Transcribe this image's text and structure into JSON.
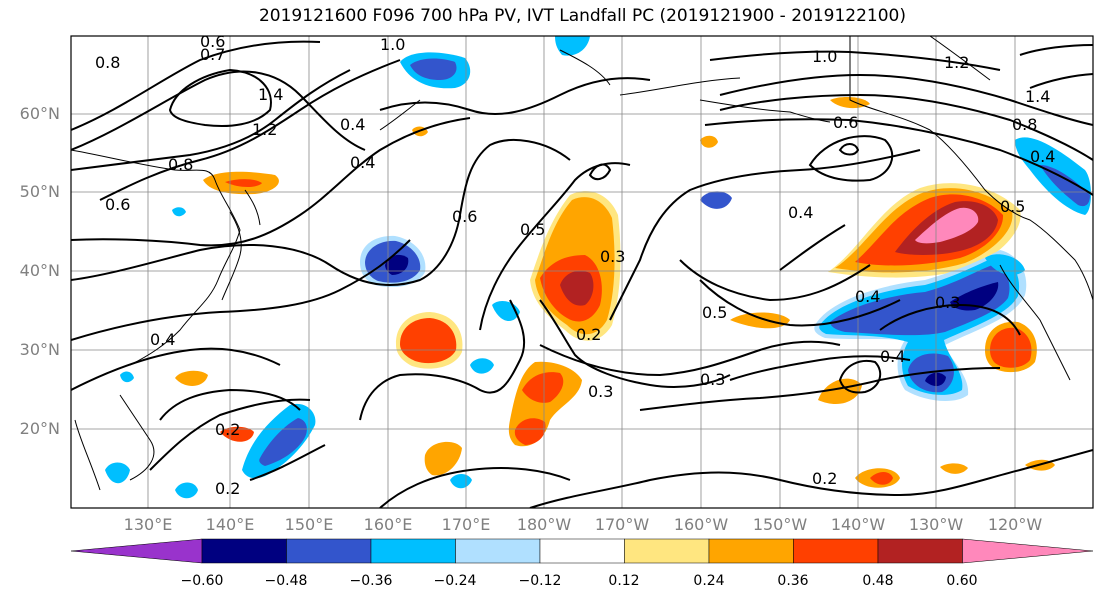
{
  "title": "2019121600 F096 700 hPa PV, IVT Landfall PC (2019121900 - 2019122100)",
  "lat_labels": [
    "60°N",
    "50°N",
    "40°N",
    "30°N",
    "20°N"
  ],
  "lon_labels": [
    "130°E",
    "140°E",
    "150°E",
    "160°E",
    "170°E",
    "180°W",
    "170°W",
    "160°W",
    "150°W",
    "140°W",
    "130°W",
    "120°W"
  ],
  "contour_labels": [
    "0.8",
    "0.6",
    "0.7",
    "1.0",
    "1.4",
    "1.2",
    "0.8",
    "0.6",
    "0.4",
    "0.4",
    "0.6",
    "0.5",
    "0.3",
    "0.2",
    "0.3",
    "0.2",
    "0.2",
    "0.4",
    "0.5",
    "0.3",
    "0.4",
    "0.4",
    "0.3",
    "0.4",
    "0.2",
    "1.0",
    "1.2",
    "1.4",
    "0.8",
    "0.4",
    "0.5",
    "0.6"
  ],
  "colorbar": {
    "colors": [
      "#9933cc",
      "#000080",
      "#3355cc",
      "#00bfff",
      "#b0e0ff",
      "#ffffff",
      "#ffe680",
      "#ffa500",
      "#ff4000",
      "#b22222",
      "#ff88bb"
    ],
    "tick_labels": [
      "−0.60",
      "−0.48",
      "−0.36",
      "−0.24",
      "−0.12",
      "0.12",
      "0.24",
      "0.36",
      "0.48",
      "0.60"
    ]
  },
  "fill_colors": {
    "light_blue": "#b0e0ff",
    "cyan": "#00bfff",
    "blue": "#3355cc",
    "navy": "#000080",
    "yellow": "#ffe680",
    "orange": "#ffa500",
    "red_orange": "#ff4000",
    "dark_red": "#b22222",
    "pink": "#ff88bb"
  }
}
